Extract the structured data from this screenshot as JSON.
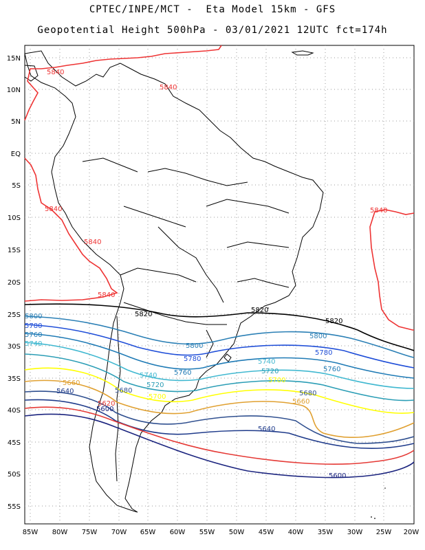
{
  "header": {
    "line1": "CPTEC/INPE/MCT -  Eta Model 15km - GFS",
    "line2": "Geopotential Height 500hPa - 03/01/2021 12UTC fct=174h"
  },
  "axes": {
    "lat_labels": [
      "15N",
      "10N",
      "5N",
      "EQ",
      "5S",
      "10S",
      "15S",
      "20S",
      "25S",
      "30S",
      "35S",
      "40S",
      "45S",
      "50S",
      "55S"
    ],
    "lon_labels": [
      "85W",
      "80W",
      "75W",
      "70W",
      "65W",
      "60W",
      "55W",
      "50W",
      "45W",
      "40W",
      "35W",
      "30W",
      "25W",
      "20W"
    ]
  },
  "contour_colors": {
    "5600": "#1a237e",
    "5620": "#e53935",
    "5640": "#1e3a8a",
    "5660": "#e0a030",
    "5680": "#2f4f8f",
    "5700": "#ffff00",
    "5720": "#2a9db5",
    "5740": "#40b8d0",
    "5760": "#1e7ab5",
    "5780": "#1f4ed8",
    "5800": "#2a7fb5",
    "5820": "#000000",
    "5840": "#ee3333"
  },
  "contour_labels": [
    {
      "text": "5840",
      "color": "5840"
    },
    {
      "text": "5840",
      "color": "5840"
    },
    {
      "text": "5840",
      "color": "5840"
    },
    {
      "text": "5840",
      "color": "5840"
    },
    {
      "text": "5840",
      "color": "5840"
    },
    {
      "text": "5840",
      "color": "5840"
    },
    {
      "text": "5820",
      "color": "5820"
    },
    {
      "text": "5820",
      "color": "5820"
    },
    {
      "text": "5820",
      "color": "5820"
    },
    {
      "text": "5800",
      "color": "5800"
    },
    {
      "text": "5800",
      "color": "5800"
    },
    {
      "text": "5800",
      "color": "5800"
    },
    {
      "text": "5780",
      "color": "5780"
    },
    {
      "text": "5780",
      "color": "5780"
    },
    {
      "text": "5780",
      "color": "5780"
    },
    {
      "text": "5760",
      "color": "5760"
    },
    {
      "text": "5760",
      "color": "5760"
    },
    {
      "text": "5760",
      "color": "5760"
    },
    {
      "text": "5740",
      "color": "5740"
    },
    {
      "text": "5740",
      "color": "5740"
    },
    {
      "text": "5740",
      "color": "5740"
    },
    {
      "text": "5720",
      "color": "5720"
    },
    {
      "text": "5720",
      "color": "5720"
    },
    {
      "text": "5700",
      "color": "5700"
    },
    {
      "text": "5700",
      "color": "5700"
    },
    {
      "text": "5680",
      "color": "5680"
    },
    {
      "text": "5680",
      "color": "5680"
    },
    {
      "text": "5660",
      "color": "5660"
    },
    {
      "text": "5660",
      "color": "5660"
    },
    {
      "text": "5640",
      "color": "5640"
    },
    {
      "text": "5640",
      "color": "5640"
    },
    {
      "text": "5620",
      "color": "5620"
    },
    {
      "text": "5600",
      "color": "5600"
    },
    {
      "text": "5600",
      "color": "5600"
    }
  ]
}
